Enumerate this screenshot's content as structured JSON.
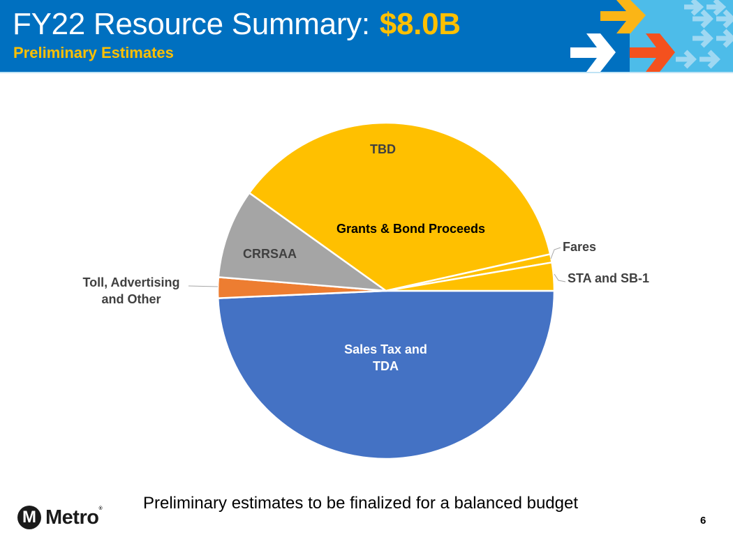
{
  "header": {
    "title": "FY22 Resource Summary:",
    "amount": "$8.0B",
    "subtitle": "Preliminary Estimates",
    "colors": {
      "background": "#0070c0",
      "accent": "#ffc000",
      "arrow_orange": "#f4511e",
      "light_blue": "#4dbce9"
    }
  },
  "chart_data": {
    "type": "pie",
    "title": "FY22 Resource Summary: $8.0B",
    "subtitle": "Preliminary Estimates",
    "total": "$8.0B",
    "start_angle_deg": 0,
    "direction": "clockwise",
    "slices": [
      {
        "label": "Sales Tax and TDA",
        "value": 49.3,
        "color": "#4472c4"
      },
      {
        "label": "Toll, Advertising and Other",
        "value": 2.0,
        "color": "#ed7d31"
      },
      {
        "label": "CRRSAA",
        "value": 8.6,
        "color": "#a5a5a5"
      },
      {
        "label": "Grants & Bond Proceeds / TBD",
        "value": 36.6,
        "color": "#ffc000"
      },
      {
        "label": "Fares",
        "value": 0.8,
        "color": "#ffc000"
      },
      {
        "label": "STA and SB-1",
        "value": 2.7,
        "color": "#ffc000"
      }
    ],
    "units": "percent of total (estimated from slice angles)",
    "legend": "none (data labels)"
  },
  "labels": {
    "tbd": "TBD",
    "grants": "Grants & Bond Proceeds",
    "crrsaa": "CRRSAA",
    "fares": "Fares",
    "sta": "STA and SB-1",
    "toll_line1": "Toll, Advertising",
    "toll_line2": "and Other",
    "sales_line1": "Sales Tax and",
    "sales_line2": "TDA"
  },
  "footer": {
    "logo_letter": "M",
    "logo_text": "Metro",
    "logo_reg": "®",
    "note": "Preliminary estimates to be finalized for a balanced budget",
    "page_number": "6"
  }
}
